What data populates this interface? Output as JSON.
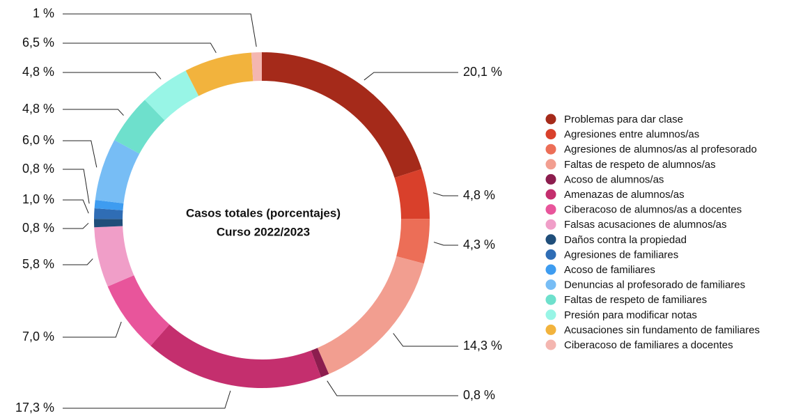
{
  "chart_data": {
    "type": "pie",
    "donut": true,
    "title": "Casos totales (porcentajes)",
    "subtitle": "Curso 2022/2023",
    "categories": [
      "Problemas para dar clase",
      "Agresiones entre alumnos/as",
      "Agresiones de alumnos/as al profesorado",
      "Faltas de respeto de alumnos/as",
      "Acoso de alumnos/as",
      "Amenazas de alumnos/as",
      "Ciberacoso de alumnos/as a docentes",
      "Falsas acusaciones de alumnos/as",
      "Daños contra la propiedad",
      "Agresiones de familiares",
      "Acoso de familiares",
      "Denuncias al profesorado de familiares",
      "Faltas de respeto de familiares",
      "Presión para modificar notas",
      "Acusaciones sin fundamento de familiares",
      "Ciberacoso de familiares a docentes"
    ],
    "values": [
      20.1,
      4.8,
      4.3,
      14.3,
      0.8,
      17.3,
      7.0,
      5.8,
      0.8,
      1.0,
      0.8,
      6.0,
      4.8,
      4.8,
      6.5,
      1
    ],
    "value_labels": [
      "20,1 %",
      "4,8 %",
      "4,3 %",
      "14,3 %",
      "0,8 %",
      "17,3 %",
      "7,0 %",
      "5,8 %",
      "0,8 %",
      "1,0 %",
      "0,8 %",
      "6,0 %",
      "4,8 %",
      "4,8 %",
      "6,5 %",
      "1 %"
    ],
    "colors": [
      "#a52a1a",
      "#d9402b",
      "#ec6e57",
      "#f29e90",
      "#8c1d4e",
      "#c42f6e",
      "#e8559b",
      "#f09ec8",
      "#1f4e7a",
      "#2f6db5",
      "#3e9cf0",
      "#77bdf5",
      "#6ee0cc",
      "#98f5e6",
      "#f2b33d",
      "#f4b6b0"
    ],
    "legend": "right"
  }
}
